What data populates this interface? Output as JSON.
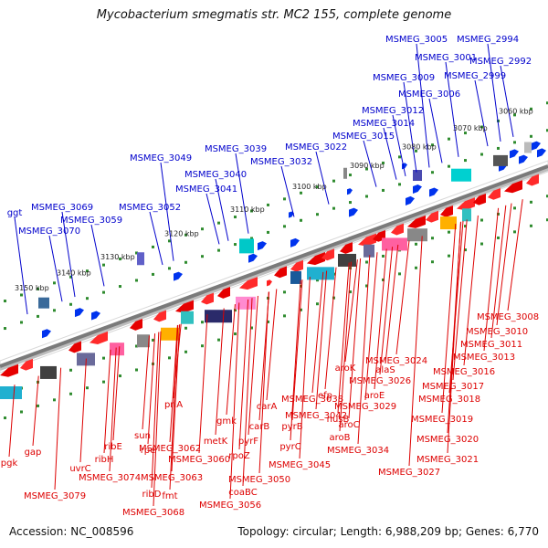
{
  "title": "Mycobacterium smegmatis str. MC2 155, complete genome",
  "footer": {
    "accession": "Accession: NC_008596",
    "stats": "Topology: circular; Length: 6,988,209 bp; Genes: 6,770"
  },
  "colors": {
    "upper_gene_label": "#0000cc",
    "lower_gene_label": "#dd0000",
    "axis": "#888888",
    "ticks": "#2e8b2e"
  },
  "kbp_ticks": [
    "3150 kbp",
    "3140 kbp",
    "3130 kbp",
    "3120 kbp",
    "3110 kbp",
    "3100 kbp",
    "3090 kbp",
    "3080 kbp",
    "3070 kbp",
    "3060 kbp"
  ],
  "upper_genes": [
    "ggt",
    "MSMEG_3070",
    "MSMEG_3069",
    "MSMEG_3059",
    "MSMEG_3052",
    "MSMEG_3049",
    "MSMEG_3041",
    "MSMEG_3040",
    "MSMEG_3039",
    "MSMEG_3032",
    "MSMEG_3022",
    "MSMEG_3015",
    "MSMEG_3014",
    "MSMEG_3012",
    "MSMEG_3009",
    "MSMEG_3006",
    "MSMEG_3005",
    "MSMEG_3001",
    "MSMEG_2999",
    "MSMEG_2994",
    "MSMEG_2992"
  ],
  "lower_genes": [
    "pgk",
    "gap",
    "uvrC",
    "MSMEG_3079",
    "ribE",
    "ribH",
    "MSMEG_3074",
    "sun",
    "rpe",
    "ribD",
    "MSMEG_3068",
    "priA",
    "MSMEG_3062",
    "MSMEG_3063",
    "fmt",
    "MSMEG_3060",
    "metK",
    "gmk",
    "rpoZ",
    "MSMEG_3056",
    "coaBC",
    "MSMEG_3050",
    "pyrF",
    "carB",
    "carA",
    "pyrB",
    "pyrC",
    "MSMEG_3045",
    "MSMEG_3042",
    "MSMEG_3038",
    "efp",
    "nusB",
    "aroB",
    "aroC",
    "MSMEG_3034",
    "MSMEG_3029",
    "aroE",
    "aroK",
    "MSMEG_3026",
    "alaS",
    "MSMEG_3024",
    "MSMEG_3027",
    "MSMEG_3021",
    "MSMEG_3020",
    "MSMEG_3019",
    "MSMEG_3018",
    "MSMEG_3017",
    "MSMEG_3016",
    "MSMEG_3013",
    "MSMEG_3011",
    "MSMEG_3010",
    "MSMEG_3008"
  ]
}
